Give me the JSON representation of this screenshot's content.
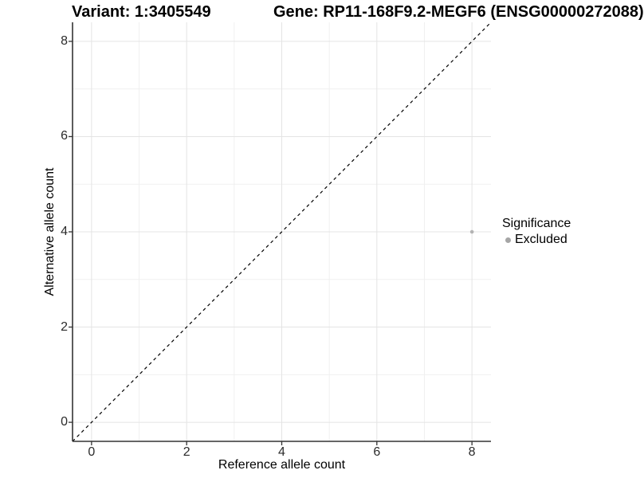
{
  "chart_data": {
    "type": "scatter",
    "titles": {
      "variant": "Variant: 1:3405549",
      "gene": "Gene: RP11-168F9.2-MEGF6 (ENSG00000272088)"
    },
    "xlabel": "Reference allele count",
    "ylabel": "Alternative allele count",
    "xlim": [
      -0.4,
      8.4
    ],
    "ylim": [
      -0.4,
      8.4
    ],
    "x_major_ticks": [
      0,
      2,
      4,
      6,
      8
    ],
    "x_minor_ticks": [
      1,
      3,
      5,
      7
    ],
    "y_major_ticks": [
      0,
      2,
      4,
      6,
      8
    ],
    "y_minor_ticks": [
      1,
      3,
      5,
      7
    ],
    "grid": "major and minor gridlines, white panel, open top/right",
    "series": [
      {
        "name": "Excluded",
        "points": [
          [
            8,
            4
          ]
        ]
      }
    ],
    "reference_line": {
      "kind": "identity y=x",
      "style": "dashed",
      "from": [
        -0.4,
        -0.4
      ],
      "to": [
        8.4,
        8.4
      ]
    },
    "legend": {
      "title": "Significance",
      "position": "right",
      "items": [
        {
          "label": "Excluded",
          "color": "#a6a6a6"
        }
      ]
    },
    "style": {
      "point_color": "#b3b3b3",
      "point_radius": 2.3,
      "grid_major_color": "#e4e4e4",
      "grid_minor_color": "#f0f0f0",
      "axis_color": "#333333",
      "ref_line_color": "#000000",
      "background": "#ffffff"
    }
  }
}
